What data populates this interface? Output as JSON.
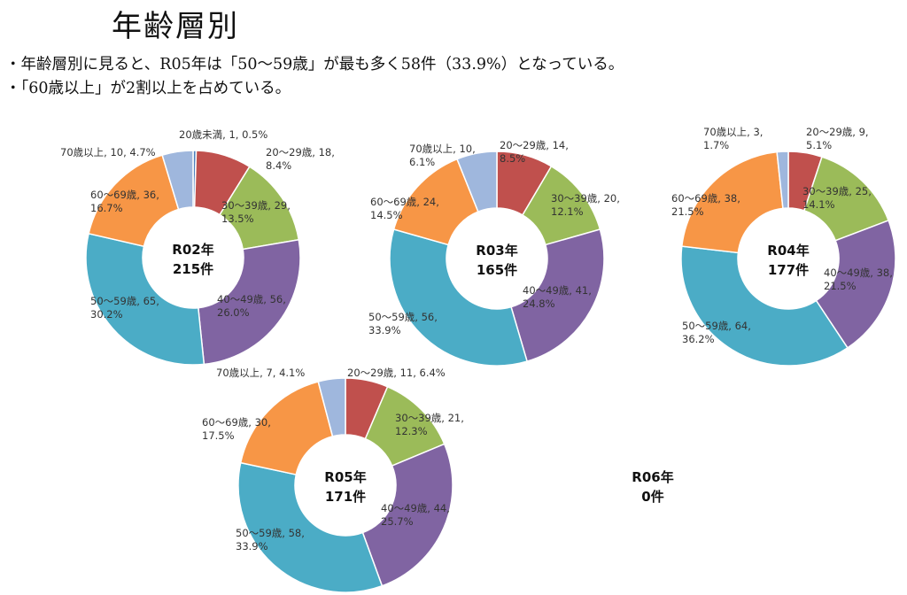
{
  "heading": "年齢層別",
  "bullets": [
    "・年齢層別に見ると、R05年は「50〜59歳」が最も多く58件（33.9%）となっている。",
    "・「60歳以上」が2割以上を占めている。"
  ],
  "colors": {
    "20歳未満": "#4f81bd",
    "20〜29歳": "#c0504d",
    "30〜39歳": "#9bbb59",
    "40〜49歳": "#8064a2",
    "50〜59歳": "#4bacc6",
    "60〜69歳": "#f79646",
    "70歳以上": "#9fb7dd"
  },
  "chart_data": [
    {
      "type": "pie",
      "title": "R02年",
      "total_label": "215件",
      "slices": [
        {
          "category": "20歳未満",
          "value": 1,
          "percent": "0.5%",
          "label_lines": [
            "20歳未満, 1, 0.5%"
          ]
        },
        {
          "category": "20〜29歳",
          "value": 18,
          "percent": "8.4%",
          "label_lines": [
            "20〜29歳, 18,",
            "8.4%"
          ]
        },
        {
          "category": "30〜39歳",
          "value": 29,
          "percent": "13.5%",
          "label_lines": [
            "30〜39歳, 29,",
            "13.5%"
          ]
        },
        {
          "category": "40〜49歳",
          "value": 56,
          "percent": "26.0%",
          "label_lines": [
            "40〜49歳, 56,",
            "26.0%"
          ]
        },
        {
          "category": "50〜59歳",
          "value": 65,
          "percent": "30.2%",
          "label_lines": [
            "50〜59歳, 65,",
            "30.2%"
          ]
        },
        {
          "category": "60〜69歳",
          "value": 36,
          "percent": "16.7%",
          "label_lines": [
            "60〜69歳, 36,",
            "16.7%"
          ]
        },
        {
          "category": "70歳以上",
          "value": 10,
          "percent": "4.7%",
          "label_lines": [
            "70歳以上, 10, 4.7%"
          ]
        }
      ]
    },
    {
      "type": "pie",
      "title": "R03年",
      "total_label": "165件",
      "slices": [
        {
          "category": "20〜29歳",
          "value": 14,
          "percent": "8.5%",
          "label_lines": [
            "20〜29歳, 14,",
            "8.5%"
          ]
        },
        {
          "category": "30〜39歳",
          "value": 20,
          "percent": "12.1%",
          "label_lines": [
            "30〜39歳, 20,",
            "12.1%"
          ]
        },
        {
          "category": "40〜49歳",
          "value": 41,
          "percent": "24.8%",
          "label_lines": [
            "40〜49歳, 41,",
            "24.8%"
          ]
        },
        {
          "category": "50〜59歳",
          "value": 56,
          "percent": "33.9%",
          "label_lines": [
            "50〜59歳, 56,",
            "33.9%"
          ]
        },
        {
          "category": "60〜69歳",
          "value": 24,
          "percent": "14.5%",
          "label_lines": [
            "60〜69歳, 24,",
            "14.5%"
          ]
        },
        {
          "category": "70歳以上",
          "value": 10,
          "percent": "6.1%",
          "label_lines": [
            "70歳以上, 10,",
            "6.1%"
          ]
        }
      ]
    },
    {
      "type": "pie",
      "title": "R04年",
      "total_label": "177件",
      "slices": [
        {
          "category": "20〜29歳",
          "value": 9,
          "percent": "5.1%",
          "label_lines": [
            "20〜29歳, 9,",
            "5.1%"
          ]
        },
        {
          "category": "30〜39歳",
          "value": 25,
          "percent": "14.1%",
          "label_lines": [
            "30〜39歳, 25,",
            "14.1%"
          ]
        },
        {
          "category": "40〜49歳",
          "value": 38,
          "percent": "21.5%",
          "label_lines": [
            "40〜49歳, 38,",
            "21.5%"
          ]
        },
        {
          "category": "50〜59歳",
          "value": 64,
          "percent": "36.2%",
          "label_lines": [
            "50〜59歳, 64,",
            "36.2%"
          ]
        },
        {
          "category": "60〜69歳",
          "value": 38,
          "percent": "21.5%",
          "label_lines": [
            "60〜69歳, 38,",
            "21.5%"
          ]
        },
        {
          "category": "70歳以上",
          "value": 3,
          "percent": "1.7%",
          "label_lines": [
            "70歳以上, 3,",
            "1.7%"
          ]
        }
      ]
    },
    {
      "type": "pie",
      "title": "R05年",
      "total_label": "171件",
      "slices": [
        {
          "category": "20〜29歳",
          "value": 11,
          "percent": "6.4%",
          "label_lines": [
            "20〜29歳, 11, 6.4%"
          ]
        },
        {
          "category": "30〜39歳",
          "value": 21,
          "percent": "12.3%",
          "label_lines": [
            "30〜39歳, 21,",
            "12.3%"
          ]
        },
        {
          "category": "40〜49歳",
          "value": 44,
          "percent": "25.7%",
          "label_lines": [
            "40〜49歳, 44,",
            "25.7%"
          ]
        },
        {
          "category": "50〜59歳",
          "value": 58,
          "percent": "33.9%",
          "label_lines": [
            "50〜59歳, 58,",
            "33.9%"
          ]
        },
        {
          "category": "60〜69歳",
          "value": 30,
          "percent": "17.5%",
          "label_lines": [
            "60〜69歳, 30,",
            "17.5%"
          ]
        },
        {
          "category": "70歳以上",
          "value": 7,
          "percent": "4.1%",
          "label_lines": [
            "70歳以上, 7, 4.1%"
          ]
        }
      ]
    },
    {
      "type": "pie",
      "title": "R06年",
      "total_label": "0件",
      "slices": []
    }
  ]
}
